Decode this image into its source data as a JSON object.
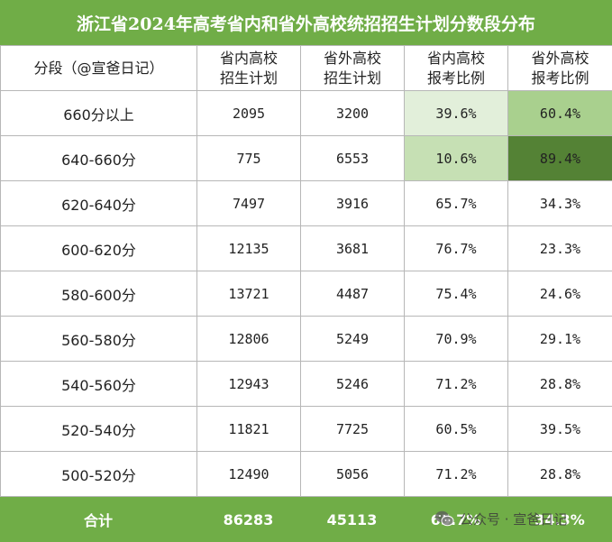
{
  "title": "浙江省2024年高考省内和省外高校统招招生计划分数段分布",
  "headers": {
    "segment": "分段（@宣爸日记）",
    "in_plan": [
      "省内高校",
      "招生计划"
    ],
    "out_plan": [
      "省外高校",
      "招生计划"
    ],
    "in_ratio": [
      "省内高校",
      "报考比例"
    ],
    "out_ratio": [
      "省外高校",
      "报考比例"
    ]
  },
  "rows": [
    {
      "segment": "660分以上",
      "in_plan": "2095",
      "out_plan": "3200",
      "in_ratio": "39.6%",
      "out_ratio": "60.4%",
      "in_fill": "#e2efda",
      "out_fill": "#a9d08e"
    },
    {
      "segment": "640-660分",
      "in_plan": "775",
      "out_plan": "6553",
      "in_ratio": "10.6%",
      "out_ratio": "89.4%",
      "in_fill": "#c6e0b4",
      "out_fill": "#548235"
    },
    {
      "segment": "620-640分",
      "in_plan": "7497",
      "out_plan": "3916",
      "in_ratio": "65.7%",
      "out_ratio": "34.3%",
      "in_fill": "#ffffff",
      "out_fill": "#ffffff"
    },
    {
      "segment": "600-620分",
      "in_plan": "12135",
      "out_plan": "3681",
      "in_ratio": "76.7%",
      "out_ratio": "23.3%",
      "in_fill": "#ffffff",
      "out_fill": "#ffffff"
    },
    {
      "segment": "580-600分",
      "in_plan": "13721",
      "out_plan": "4487",
      "in_ratio": "75.4%",
      "out_ratio": "24.6%",
      "in_fill": "#ffffff",
      "out_fill": "#ffffff"
    },
    {
      "segment": "560-580分",
      "in_plan": "12806",
      "out_plan": "5249",
      "in_ratio": "70.9%",
      "out_ratio": "29.1%",
      "in_fill": "#ffffff",
      "out_fill": "#ffffff"
    },
    {
      "segment": "540-560分",
      "in_plan": "12943",
      "out_plan": "5246",
      "in_ratio": "71.2%",
      "out_ratio": "28.8%",
      "in_fill": "#ffffff",
      "out_fill": "#ffffff"
    },
    {
      "segment": "520-540分",
      "in_plan": "11821",
      "out_plan": "7725",
      "in_ratio": "60.5%",
      "out_ratio": "39.5%",
      "in_fill": "#ffffff",
      "out_fill": "#ffffff"
    },
    {
      "segment": "500-520分",
      "in_plan": "12490",
      "out_plan": "5056",
      "in_ratio": "71.2%",
      "out_ratio": "28.8%",
      "in_fill": "#ffffff",
      "out_fill": "#ffffff"
    }
  ],
  "total": {
    "label": "合计",
    "in_plan": "86283",
    "out_plan": "45113",
    "in_ratio": "65.7%",
    "out_ratio": "34.3%"
  },
  "watermark": {
    "text": "公众号 · 宣爸日记",
    "icon": "wechat-icon"
  },
  "colors": {
    "accent": "#70ad47",
    "header_text": "#ffffff"
  }
}
